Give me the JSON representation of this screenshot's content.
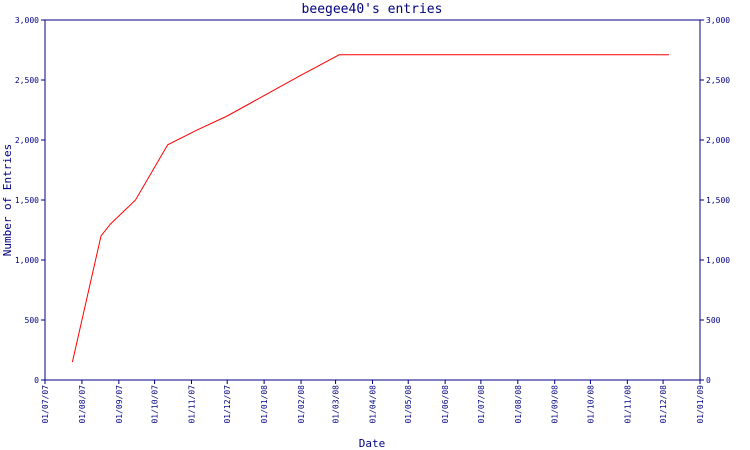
{
  "chart_data": {
    "type": "line",
    "title": "beegee40's entries",
    "xlabel": "Date",
    "ylabel": "Number of Entries",
    "ylim": [
      0,
      3000
    ],
    "grid": false,
    "colors": {
      "axis": "#000080",
      "line": "#ff0000",
      "text": "#000080"
    },
    "x_ticks": [
      "01/07/07",
      "01/08/07",
      "01/09/07",
      "01/10/07",
      "01/11/07",
      "01/12/07",
      "01/01/08",
      "01/02/08",
      "01/03/08",
      "01/04/08",
      "01/05/08",
      "01/06/08",
      "01/07/08",
      "01/08/08",
      "01/09/08",
      "01/10/08",
      "01/11/08",
      "01/12/08",
      "01/01/09"
    ],
    "y_ticks": [
      "0",
      "500",
      "1,000",
      "1,500",
      "2,000",
      "2,500",
      "3,000"
    ],
    "y_tick_values": [
      0,
      500,
      1000,
      1500,
      2000,
      2500,
      3000
    ],
    "series": [
      {
        "points": [
          {
            "x": "2007-07-24",
            "y": 150
          },
          {
            "x": "2007-08-17",
            "y": 1200
          },
          {
            "x": "2007-08-25",
            "y": 1300
          },
          {
            "x": "2007-09-15",
            "y": 1500
          },
          {
            "x": "2007-10-12",
            "y": 1960
          },
          {
            "x": "2007-11-05",
            "y": 2080
          },
          {
            "x": "2007-12-01",
            "y": 2200
          },
          {
            "x": "2008-01-01",
            "y": 2370
          },
          {
            "x": "2008-02-01",
            "y": 2540
          },
          {
            "x": "2008-03-04",
            "y": 2710
          },
          {
            "x": "2008-12-06",
            "y": 2710
          }
        ]
      }
    ]
  }
}
